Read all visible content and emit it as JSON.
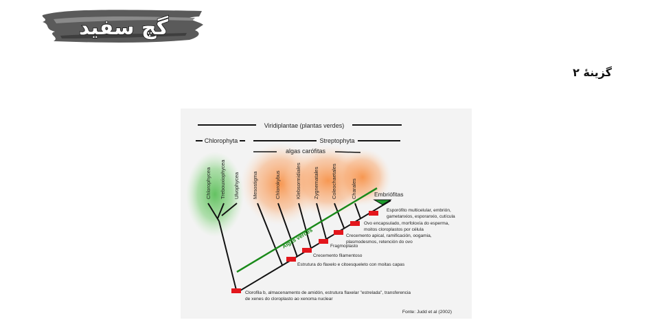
{
  "logo": {
    "text": "گچ سفید",
    "icon": "brush-stroke-logo"
  },
  "question": {
    "option_label": "گزینهٔ ۲"
  },
  "figure": {
    "header_all": "Viridiplantae (plantas verdes)",
    "header_chloro": "Chlorophyta",
    "header_strepto": "Streptophyta",
    "header_algas": "algas carófitas",
    "taxa": {
      "t1": "Chlorophycea",
      "t2": "Trebouxiophycea",
      "t3": "Ulvophycea",
      "t4": "Mesostigma",
      "t5": "Chlorokybus",
      "t6": "Klebsormidiales",
      "t7": "Zygnematales",
      "t8": "Coleochaetales",
      "t9": "Charales"
    },
    "embryo_label": "Embriófitas",
    "green_bar_label": "Algas verdes",
    "traits": {
      "c1": "Esporófito multicelular, embrión,",
      "c2": "gametanxios, esporanxio, cutícula",
      "c3": "Ovo encapsulado, morfoloxía do esperma,",
      "c4": "moitos cloroplastos por célula",
      "c5": "Crecemento apical, ramificación, oogamia,",
      "c6": "plasmodesmos, retención do ovo",
      "c7": "Fragmoplasto",
      "c8": "Crecemento filamentoso",
      "c9": "Estrutura do flaxelo e citoesqueleto con moitas capas",
      "c10": "Clorofila b, almacenamento de amidón, estrutura flaxelar \"estrelada\", transferencia",
      "c11": "de xenes do cloroplasto ao xenoma nuclear"
    },
    "source": "Fonte: Judd et al (2002)",
    "colors": {
      "chlorophyta_glow": "#6cc26a",
      "charophyte_glow": "#f7a05e",
      "marker_red": "#e3161c",
      "bar_green": "#1a8a1a",
      "line_black": "#111111"
    }
  }
}
